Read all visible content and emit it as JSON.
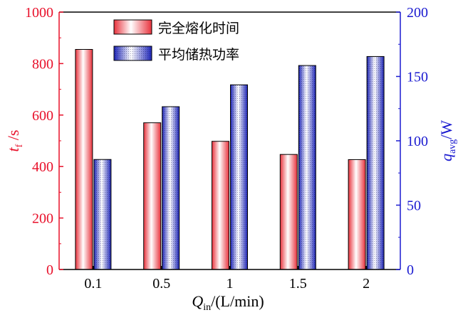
{
  "chart_data": {
    "type": "bar",
    "categories": [
      "0.1",
      "0.5",
      "1",
      "1.5",
      "2"
    ],
    "series": [
      {
        "name": "完全熔化时间",
        "axis": "left",
        "values": [
          855,
          570,
          498,
          447,
          427
        ],
        "color": "#e8323c"
      },
      {
        "name": "平均储热功率",
        "axis": "right",
        "values": [
          85.5,
          126.5,
          143.5,
          158.5,
          165.5
        ],
        "color": "#2b35c9"
      }
    ],
    "xlabel": {
      "main": "Q",
      "sub": "in",
      "rest": "/(L/min)"
    },
    "ylabel_left": {
      "main": "t",
      "sub": "f",
      "rest": " /s"
    },
    "ylabel_right": {
      "main": "q",
      "sub": "avg",
      "rest": "/W"
    },
    "ylim_left": [
      0,
      1000
    ],
    "yticks_left": [
      0,
      200,
      400,
      600,
      800,
      1000
    ],
    "ylim_right": [
      0,
      200
    ],
    "yticks_right": [
      0,
      50,
      100,
      150,
      200
    ],
    "left_axis_color": "#e8102a",
    "right_axis_color": "#1a1ad0",
    "grid": false,
    "legend_position": "top-center"
  }
}
